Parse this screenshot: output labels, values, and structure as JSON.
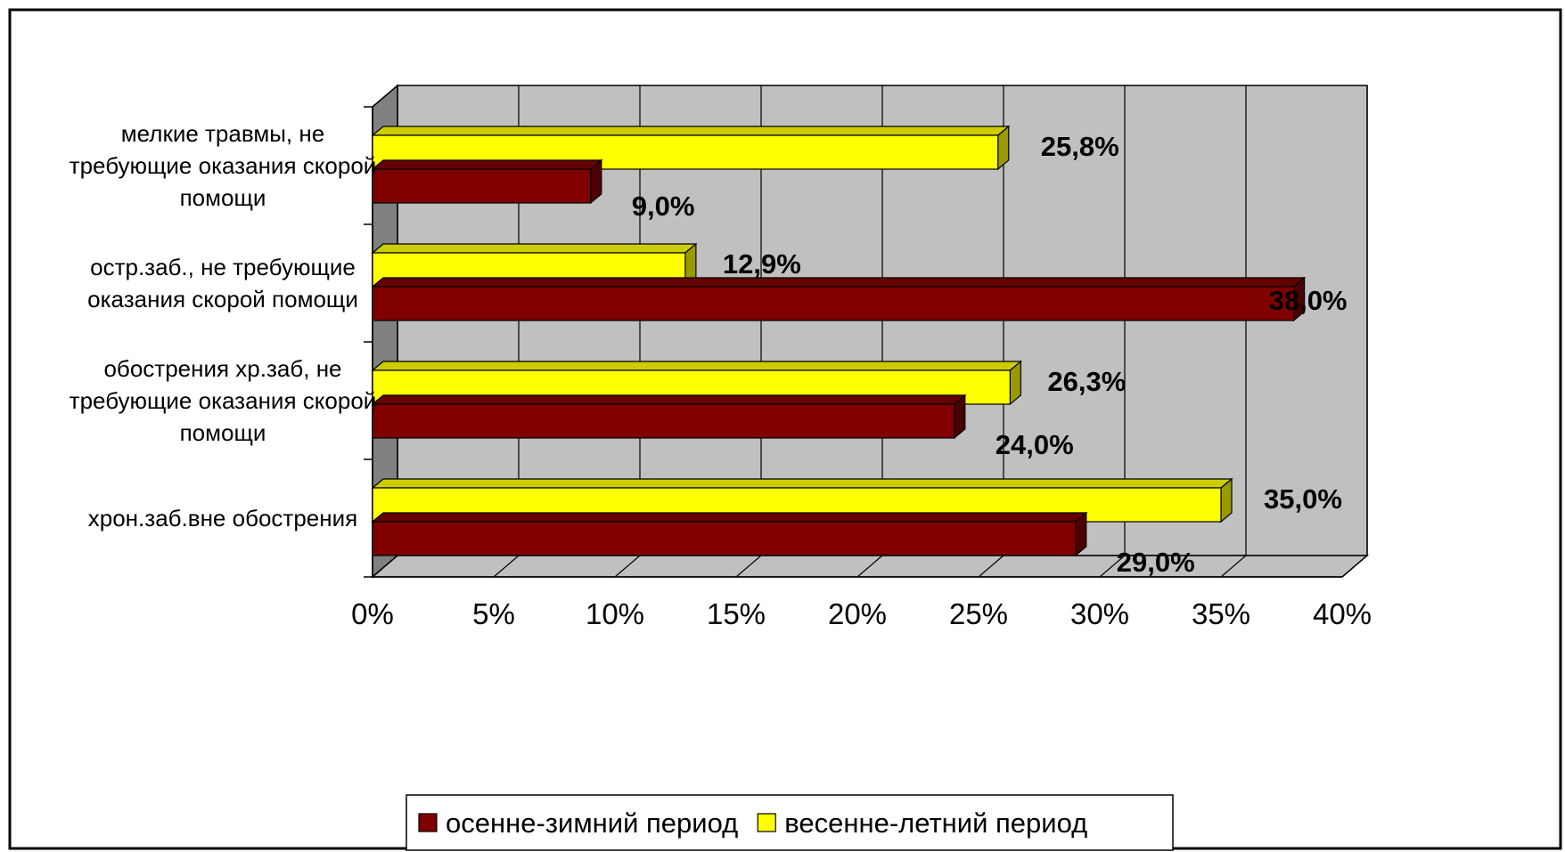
{
  "chart_data": {
    "type": "bar",
    "orientation": "horizontal",
    "three_d": true,
    "categories": [
      [
        "мелкие травмы, не",
        "требующие оказания скорой",
        "помощи"
      ],
      [
        "остр.заб., не требующие",
        "оказания скорой помощи"
      ],
      [
        "обострения хр.заб, не",
        "требующие оказания скорой",
        "помощи"
      ],
      [
        "хрон.заб.вне обострения"
      ]
    ],
    "series": [
      {
        "name": "осенне-зимний период",
        "color": "#800000",
        "values": [
          9.0,
          38.0,
          24.0,
          29.0
        ],
        "labels": [
          "9,0%",
          "38,0%",
          "24,0%",
          "29,0%"
        ]
      },
      {
        "name": "весенне-летний период",
        "color": "#FFFF00",
        "values": [
          25.8,
          12.9,
          26.3,
          35.0
        ],
        "labels": [
          "25,8%",
          "12,9%",
          "26,3%",
          "35,0%"
        ]
      }
    ],
    "xlim": [
      0,
      40
    ],
    "xticks": [
      "0%",
      "5%",
      "10%",
      "15%",
      "20%",
      "25%",
      "30%",
      "35%",
      "40%"
    ],
    "grid": true,
    "wall_color": "#C0C0C0",
    "legend_position": "bottom"
  }
}
